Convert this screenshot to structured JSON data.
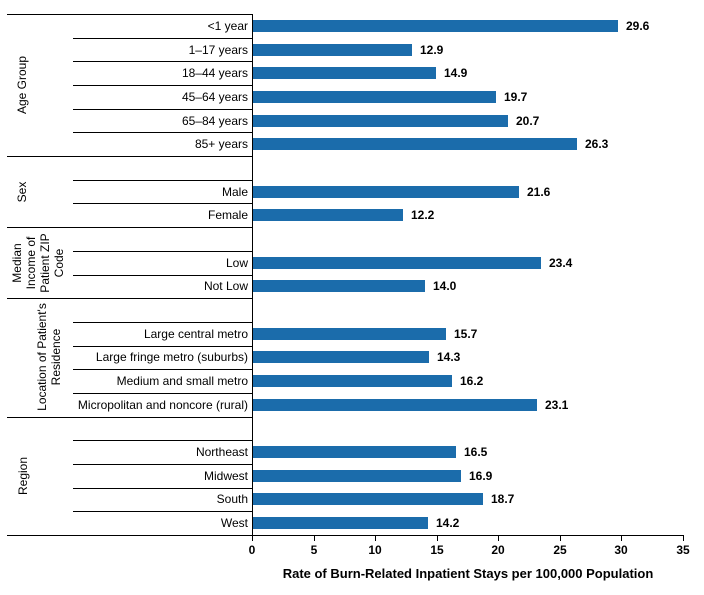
{
  "chart_data": {
    "type": "bar",
    "orientation": "horizontal",
    "title": "",
    "xlabel": "Rate of Burn-Related Inpatient Stays per 100,000 Population",
    "ylabel": "",
    "xlim": [
      0,
      35
    ],
    "xticks": [
      0,
      5,
      10,
      15,
      20,
      25,
      30,
      35
    ],
    "bar_color": "#1B6CAB",
    "grid": false,
    "value_labels_shown": true,
    "groups": [
      {
        "label": "Age Group",
        "label_lines": [
          "Age Group"
        ],
        "categories": [
          "<1 year",
          "1–17 years",
          "18–44 years",
          "45–64 years",
          "65–84 years",
          "85+ years"
        ],
        "values": [
          29.6,
          12.9,
          14.9,
          19.7,
          20.7,
          26.3
        ]
      },
      {
        "label": "Sex",
        "label_lines": [
          "Sex"
        ],
        "categories": [
          "Male",
          "Female"
        ],
        "values": [
          21.6,
          12.2
        ]
      },
      {
        "label": "Median Income of Patient ZIP Code",
        "label_lines": [
          "Median",
          "Income of",
          "Patient ZIP",
          "Code"
        ],
        "categories": [
          "Low",
          "Not Low"
        ],
        "values": [
          23.4,
          14.0
        ]
      },
      {
        "label": "Location of Patient's Residence",
        "label_lines": [
          "Location of Patient's",
          "Residence"
        ],
        "categories": [
          "Large central metro",
          "Large fringe metro (suburbs)",
          "Medium and small metro",
          "Micropolitan and noncore (rural)"
        ],
        "values": [
          15.7,
          14.3,
          16.2,
          23.1
        ]
      },
      {
        "label": "Region",
        "label_lines": [
          "Region"
        ],
        "categories": [
          "Northeast",
          "Midwest",
          "South",
          "West"
        ],
        "values": [
          16.5,
          16.9,
          18.7,
          14.2
        ]
      }
    ]
  }
}
